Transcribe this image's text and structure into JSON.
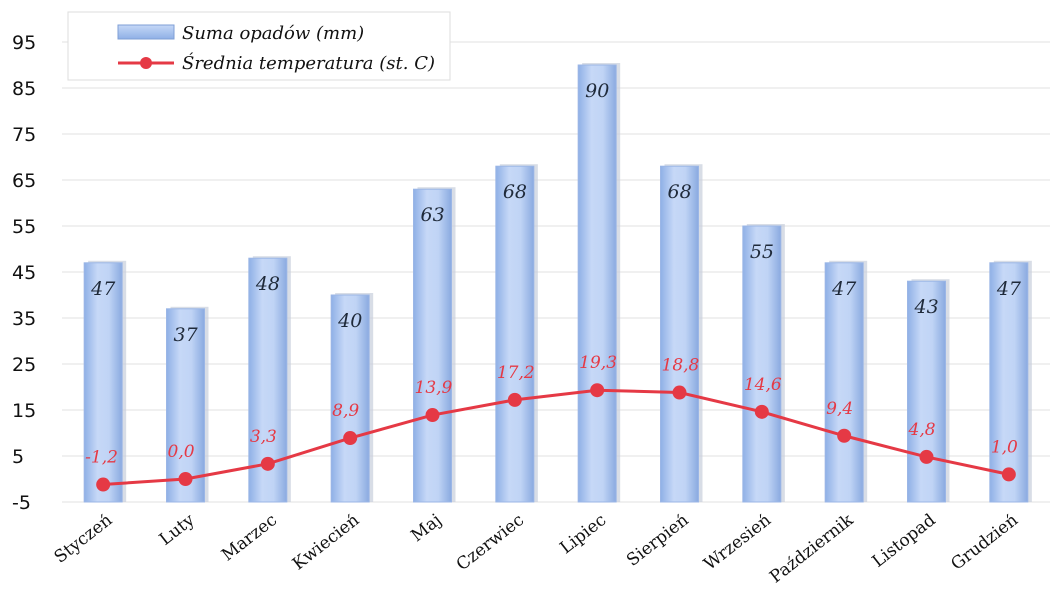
{
  "chart_data": {
    "type": "bar+line",
    "categories": [
      "Styczeń",
      "Luty",
      "Marzec",
      "Kwiecień",
      "Maj",
      "Czerwiec",
      "Lipiec",
      "Sierpień",
      "Wrzesień",
      "Październik",
      "Listopad",
      "Grudzień"
    ],
    "series": [
      {
        "name": "Suma opadów (mm)",
        "type": "bar",
        "values": [
          47,
          37,
          48,
          40,
          63,
          68,
          90,
          68,
          55,
          47,
          43,
          47
        ],
        "labels": [
          "47",
          "37",
          "48",
          "40",
          "63",
          "68",
          "90",
          "68",
          "55",
          "47",
          "43",
          "47"
        ],
        "color": "#a9c4f0"
      },
      {
        "name": "Średnia temperatura (st. C)",
        "type": "line",
        "values": [
          -1.2,
          0.0,
          3.3,
          8.9,
          13.9,
          17.2,
          19.3,
          18.8,
          14.6,
          9.4,
          4.8,
          1.0
        ],
        "labels": [
          "-1,2",
          "0,0",
          "3,3",
          "8,9",
          "13,9",
          "17,2",
          "19,3",
          "18,8",
          "14,6",
          "9,4",
          "4,8",
          "1,0"
        ],
        "color": "#e53945"
      }
    ],
    "yticks": [
      "95",
      "85",
      "75",
      "65",
      "55",
      "45",
      "35",
      "25",
      "15",
      "5",
      "-5"
    ],
    "ylim": [
      -5,
      95
    ],
    "grid": true,
    "legend_position": "top-left"
  }
}
